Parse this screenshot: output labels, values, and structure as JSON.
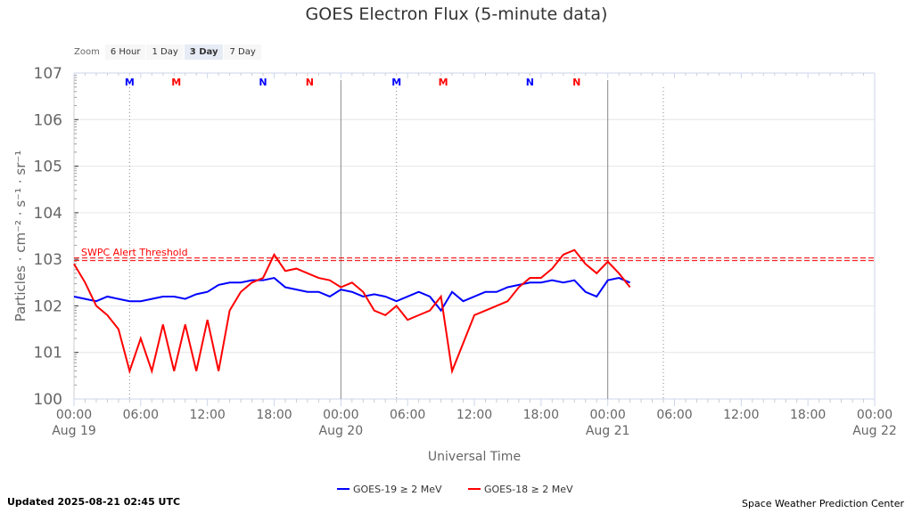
{
  "chart_data": {
    "type": "line",
    "title": "GOES Electron Flux (5-minute data)",
    "xlabel": "Universal Time",
    "ylabel": "Particles · cm⁻² · s⁻¹ · sr⁻¹",
    "yscale": "log",
    "ylim_log10": [
      0,
      7
    ],
    "y_ticks": [
      {
        "exp": 0,
        "label": "100"
      },
      {
        "exp": 1,
        "label": "101"
      },
      {
        "exp": 2,
        "label": "102"
      },
      {
        "exp": 3,
        "label": "103"
      },
      {
        "exp": 4,
        "label": "104"
      },
      {
        "exp": 5,
        "label": "105"
      },
      {
        "exp": 6,
        "label": "106"
      },
      {
        "exp": 7,
        "label": "107"
      }
    ],
    "xlim_hours": [
      0,
      72
    ],
    "x_ticks": [
      {
        "h": 0,
        "label": "00:00",
        "date": "Aug 19"
      },
      {
        "h": 6,
        "label": "06:00"
      },
      {
        "h": 12,
        "label": "12:00"
      },
      {
        "h": 18,
        "label": "18:00"
      },
      {
        "h": 24,
        "label": "00:00",
        "date": "Aug 20"
      },
      {
        "h": 30,
        "label": "06:00"
      },
      {
        "h": 36,
        "label": "12:00"
      },
      {
        "h": 42,
        "label": "18:00"
      },
      {
        "h": 48,
        "label": "00:00",
        "date": "Aug 21"
      },
      {
        "h": 54,
        "label": "06:00"
      },
      {
        "h": 60,
        "label": "12:00"
      },
      {
        "h": 66,
        "label": "18:00"
      },
      {
        "h": 72,
        "label": "00:00",
        "date": "Aug 22"
      }
    ],
    "threshold": {
      "label": "SWPC Alert Threshold",
      "value_log10": 3,
      "color": "#ff0000"
    },
    "markers": [
      {
        "h": 5,
        "label": "M",
        "color": "#0000ff"
      },
      {
        "h": 9.2,
        "label": "M",
        "color": "#ff0000"
      },
      {
        "h": 17,
        "label": "N",
        "color": "#0000ff"
      },
      {
        "h": 21.2,
        "label": "N",
        "color": "#ff0000"
      },
      {
        "h": 29,
        "label": "M",
        "color": "#0000ff"
      },
      {
        "h": 33.2,
        "label": "M",
        "color": "#ff0000"
      },
      {
        "h": 41,
        "label": "N",
        "color": "#0000ff"
      },
      {
        "h": 45.2,
        "label": "N",
        "color": "#ff0000"
      }
    ],
    "step_hours": 1,
    "series": [
      {
        "name": "GOES-19 ≥ 2 MeV",
        "color": "#0000ff",
        "values_log10": [
          2.2,
          2.15,
          2.1,
          2.2,
          2.15,
          2.1,
          2.1,
          2.15,
          2.2,
          2.2,
          2.15,
          2.25,
          2.3,
          2.45,
          2.5,
          2.5,
          2.55,
          2.55,
          2.6,
          2.4,
          2.35,
          2.3,
          2.3,
          2.2,
          2.35,
          2.3,
          2.2,
          2.25,
          2.2,
          2.1,
          2.2,
          2.3,
          2.2,
          1.9,
          2.3,
          2.1,
          2.2,
          2.3,
          2.3,
          2.4,
          2.45,
          2.5,
          2.5,
          2.55,
          2.5,
          2.55,
          2.3,
          2.2,
          2.55,
          2.6,
          2.5
        ]
      },
      {
        "name": "GOES-18 ≥ 2 MeV",
        "color": "#ff0000",
        "values_log10": [
          2.9,
          2.5,
          2.0,
          1.8,
          1.5,
          0.6,
          1.3,
          0.6,
          1.6,
          0.6,
          1.6,
          0.6,
          1.7,
          0.6,
          1.9,
          2.3,
          2.5,
          2.6,
          3.1,
          2.75,
          2.8,
          2.7,
          2.6,
          2.55,
          2.4,
          2.5,
          2.3,
          1.9,
          1.8,
          2.0,
          1.7,
          1.8,
          1.9,
          2.2,
          0.6,
          1.2,
          1.8,
          1.9,
          2.0,
          2.1,
          2.4,
          2.6,
          2.6,
          2.8,
          3.1,
          3.2,
          2.9,
          2.7,
          2.95,
          2.7,
          2.4
        ]
      }
    ]
  },
  "zoom": {
    "label": "Zoom",
    "options": [
      "6 Hour",
      "1 Day",
      "3 Day",
      "7 Day"
    ],
    "selected": "3 Day"
  },
  "footer": {
    "updated": "Updated 2025-08-21 02:45 UTC",
    "credit": "Space Weather Prediction Center"
  }
}
